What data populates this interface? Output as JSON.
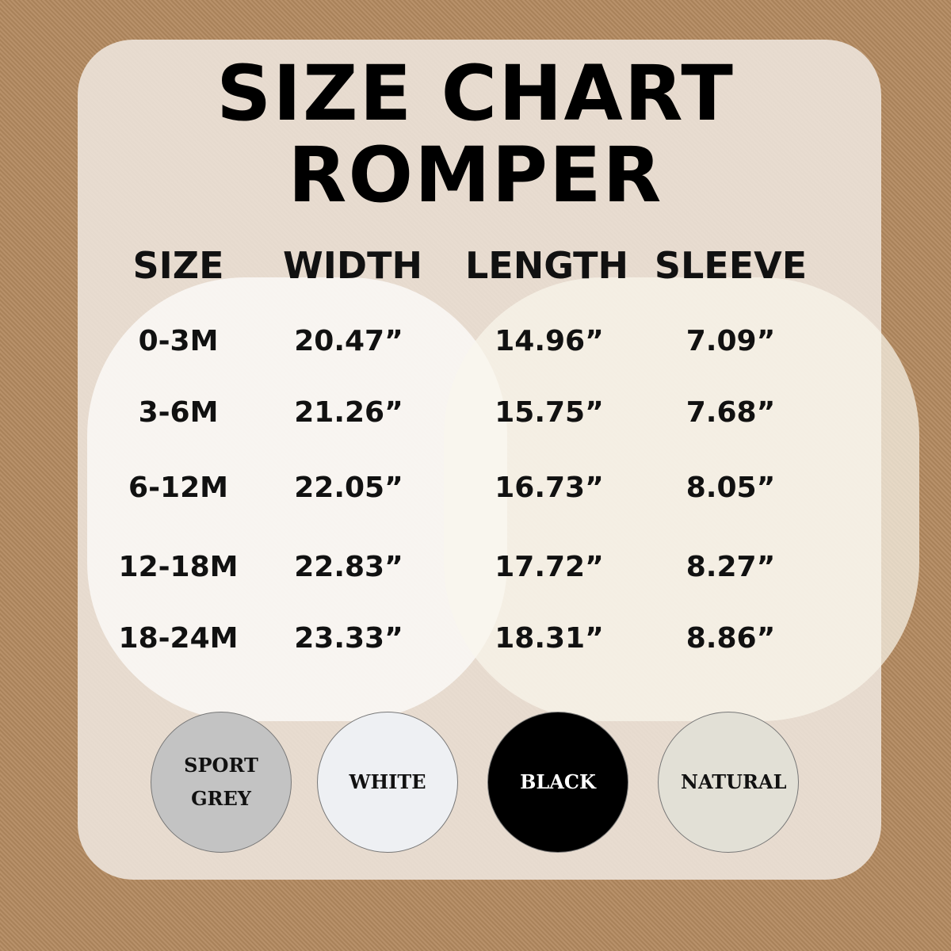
{
  "title": {
    "line1": "SIZE CHART",
    "line2": "ROMPER"
  },
  "headers": [
    "SIZE",
    "WIDTH",
    "LENGTH",
    "SLEEVE"
  ],
  "rows": [
    [
      "0-3M",
      "20.47”",
      "14.96”",
      "7.09”"
    ],
    [
      "3-6M",
      "21.26”",
      "15.75”",
      "7.68”"
    ],
    [
      "6-12M",
      "22.05”",
      "16.73”",
      "8.05”"
    ],
    [
      "12-18M",
      "22.83”",
      "17.72”",
      "8.27”"
    ],
    [
      "18-24M",
      "23.33”",
      "18.31”",
      "8.86”"
    ]
  ],
  "colors": [
    {
      "label": "SPORT GREY",
      "fill": "#c3c3c3",
      "text": "#111"
    },
    {
      "label": "WHITE",
      "fill": "#eef0f3",
      "text": "#111"
    },
    {
      "label": "BLACK",
      "fill": "#000000",
      "text": "#ffffff"
    },
    {
      "label": "NATURAL",
      "fill": "#e2e0d6",
      "text": "#111"
    }
  ]
}
